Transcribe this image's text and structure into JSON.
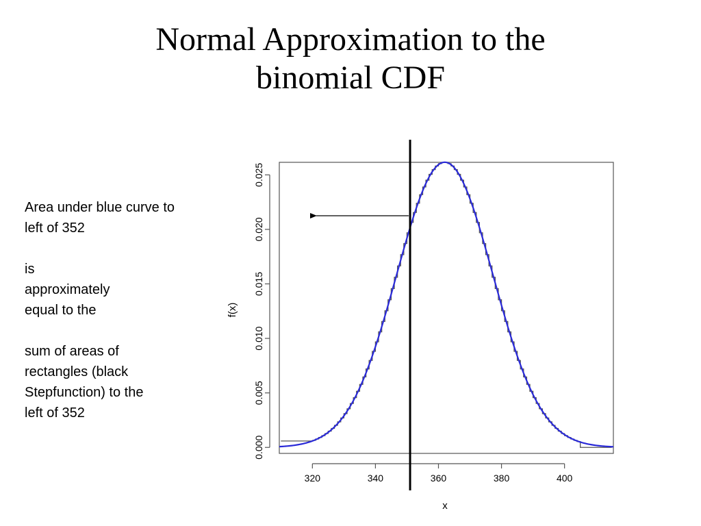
{
  "slide": {
    "title_lines": [
      "Normal Approximation to the",
      "binomial CDF"
    ],
    "annotation": {
      "lines": [
        "Area under blue curve to",
        "left of 352",
        "",
        "is",
        "approximately",
        "equal to the",
        "",
        "sum of areas of",
        "rectangles (black",
        "Stepfunction) to the",
        "left of 352"
      ]
    }
  },
  "chart_data": {
    "type": "line",
    "title": "",
    "xlabel": "x",
    "ylabel": "f(x)",
    "xlim": [
      309.5,
      415.5
    ],
    "ylim": [
      -0.00055,
      0.02615
    ],
    "x_ticks": [
      "320",
      "340",
      "360",
      "380",
      "400"
    ],
    "y_ticks": [
      "0.000",
      "0.005",
      "0.010",
      "0.015",
      "0.020",
      "0.025"
    ],
    "normal_curve": {
      "color": "#2a2ad8",
      "mean": 362,
      "sd": 15.25
    },
    "step_function": {
      "color": "#555555",
      "x_start": 310,
      "x_end": 415,
      "left_tail_until": 320,
      "right_tail_from": 405
    },
    "vertical_line_x": 351,
    "arrow": {
      "direction": "left"
    },
    "grid": false,
    "legend": "none"
  }
}
